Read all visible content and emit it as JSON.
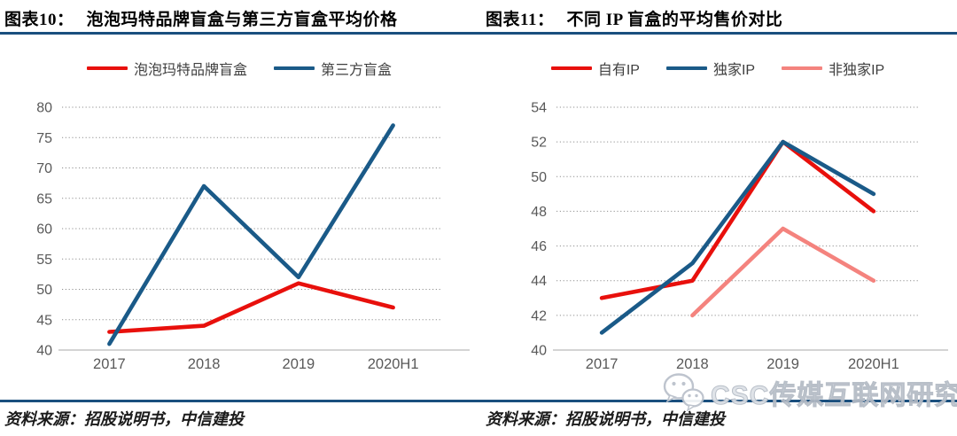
{
  "header": {
    "left_label": "图表10：",
    "left_title": "泡泡玛特品牌盲盒与第三方盲盒平均价格",
    "right_label": "图表11：",
    "right_title": "不同 IP 盲盒的平均售价对比"
  },
  "sources": {
    "left": "资料来源：招股说明书，中信建投",
    "right": "资料来源：招股说明书，中信建投"
  },
  "watermark": {
    "icon": "wechat-icon",
    "text": "CSC传媒互联网研究"
  },
  "colors": {
    "rule_blue": "#1a4f7e",
    "series_red": "#e8100c",
    "series_dark_blue": "#1a5a88",
    "series_pink": "#f4837e",
    "axis_text": "#595959",
    "gridline": "#8f8f8f",
    "baseline": "#c6c6c6"
  },
  "chart_data": [
    {
      "type": "line",
      "title": "泡泡玛特品牌盲盒与第三方盲盒平均价格",
      "categories": [
        "2017",
        "2018",
        "2019",
        "2020H1"
      ],
      "series": [
        {
          "name": "泡泡玛特品牌盲盒",
          "color": "#e8100c",
          "values": [
            43,
            44,
            51,
            47
          ]
        },
        {
          "name": "第三方盲盒",
          "color": "#1a5a88",
          "values": [
            41,
            67,
            52,
            77
          ]
        }
      ],
      "ylim": [
        40,
        80
      ],
      "ytick_step": 5,
      "yticks": [
        40,
        45,
        50,
        55,
        60,
        65,
        70,
        75,
        80
      ],
      "xlabel": "",
      "ylabel": "",
      "grid": "horizontal-dotted",
      "legend_position": "top"
    },
    {
      "type": "line",
      "title": "不同 IP 盲盒的平均售价对比",
      "categories": [
        "2017",
        "2018",
        "2019",
        "2020H1"
      ],
      "series": [
        {
          "name": "自有IP",
          "color": "#e8100c",
          "values": [
            43,
            44,
            52,
            48
          ]
        },
        {
          "name": "独家IP",
          "color": "#1a5a88",
          "values": [
            41,
            45,
            52,
            49
          ]
        },
        {
          "name": "非独家IP",
          "color": "#f4837e",
          "values": [
            null,
            42,
            47,
            44
          ]
        }
      ],
      "ylim": [
        40,
        54
      ],
      "ytick_step": 2,
      "yticks": [
        40,
        42,
        44,
        46,
        48,
        50,
        52,
        54
      ],
      "xlabel": "",
      "ylabel": "",
      "grid": "horizontal-dotted",
      "legend_position": "top"
    }
  ]
}
